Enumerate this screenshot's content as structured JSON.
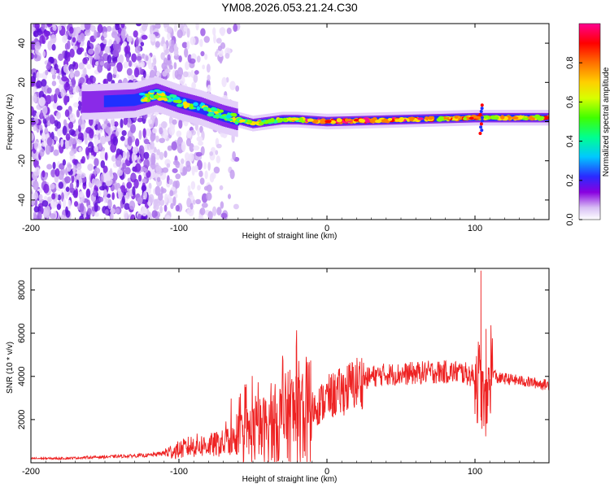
{
  "title": "YM08.2026.053.21.24.C30",
  "chart_data": [
    {
      "type": "heatmap",
      "xlabel": "Height of straight line (km)",
      "ylabel": "Frequency (Hz)",
      "xlim": [
        -200,
        150
      ],
      "ylim": [
        -50,
        50
      ],
      "xticks": [
        -200,
        -100,
        0,
        100
      ],
      "yticks": [
        -40,
        -20,
        0,
        20,
        40
      ],
      "colorbar": {
        "label": "Normalized spectral amplitude",
        "range": [
          0,
          1
        ],
        "ticks": [
          "0.0",
          "0.2",
          "0.4",
          "0.6",
          "0.8"
        ],
        "colormap": [
          "#ffffff",
          "#c8a0f0",
          "#7a00e6",
          "#2020ff",
          "#00c8ff",
          "#00ff80",
          "#60ff00",
          "#ffff00",
          "#ff9000",
          "#ff0000",
          "#ff0090"
        ]
      },
      "ridge_frequency": [
        {
          "x": -160,
          "y": 10
        },
        {
          "x": -130,
          "y": 11
        },
        {
          "x": -115,
          "y": 14
        },
        {
          "x": -100,
          "y": 10
        },
        {
          "x": -85,
          "y": 7
        },
        {
          "x": -70,
          "y": 3
        },
        {
          "x": -60,
          "y": 1
        },
        {
          "x": -50,
          "y": -1
        },
        {
          "x": -40,
          "y": 0
        },
        {
          "x": -30,
          "y": 1
        },
        {
          "x": -20,
          "y": 1
        },
        {
          "x": 0,
          "y": 0
        },
        {
          "x": 50,
          "y": 1
        },
        {
          "x": 100,
          "y": 2
        },
        {
          "x": 150,
          "y": 2
        }
      ]
    },
    {
      "type": "line",
      "xlabel": "Height of straight line (km)",
      "ylabel": "SNR (10 * v/v)",
      "xlim": [
        -200,
        150
      ],
      "ylim": [
        0,
        9000
      ],
      "xticks": [
        -200,
        -100,
        0,
        100
      ],
      "yticks": [
        2000,
        4000,
        6000,
        8000
      ],
      "color": "#ee2222",
      "series": [
        {
          "name": "SNR",
          "x": [
            -200,
            -180,
            -160,
            -140,
            -120,
            -110,
            -100,
            -90,
            -80,
            -70,
            -60,
            -55,
            -50,
            -45,
            -40,
            -35,
            -30,
            -25,
            -20,
            -15,
            -10,
            -5,
            0,
            10,
            20,
            30,
            40,
            50,
            60,
            70,
            80,
            90,
            100,
            103,
            106,
            108,
            110,
            115,
            120,
            130,
            140,
            150
          ],
          "y": [
            200,
            200,
            250,
            300,
            350,
            450,
            600,
            800,
            800,
            900,
            1100,
            1300,
            1400,
            1500,
            1600,
            1800,
            2000,
            2100,
            2300,
            2400,
            2500,
            2700,
            3000,
            3300,
            3700,
            4000,
            4100,
            4100,
            4150,
            4200,
            4200,
            4200,
            4000,
            3700,
            2800,
            2500,
            4500,
            3900,
            3900,
            3800,
            3700,
            3600
          ]
        }
      ],
      "spikes": [
        {
          "x": 104,
          "y": 8900
        },
        {
          "x": 107.5,
          "y": 6200
        },
        {
          "x": -25,
          "y": 4300
        },
        {
          "x": -21,
          "y": 4000
        }
      ]
    }
  ]
}
